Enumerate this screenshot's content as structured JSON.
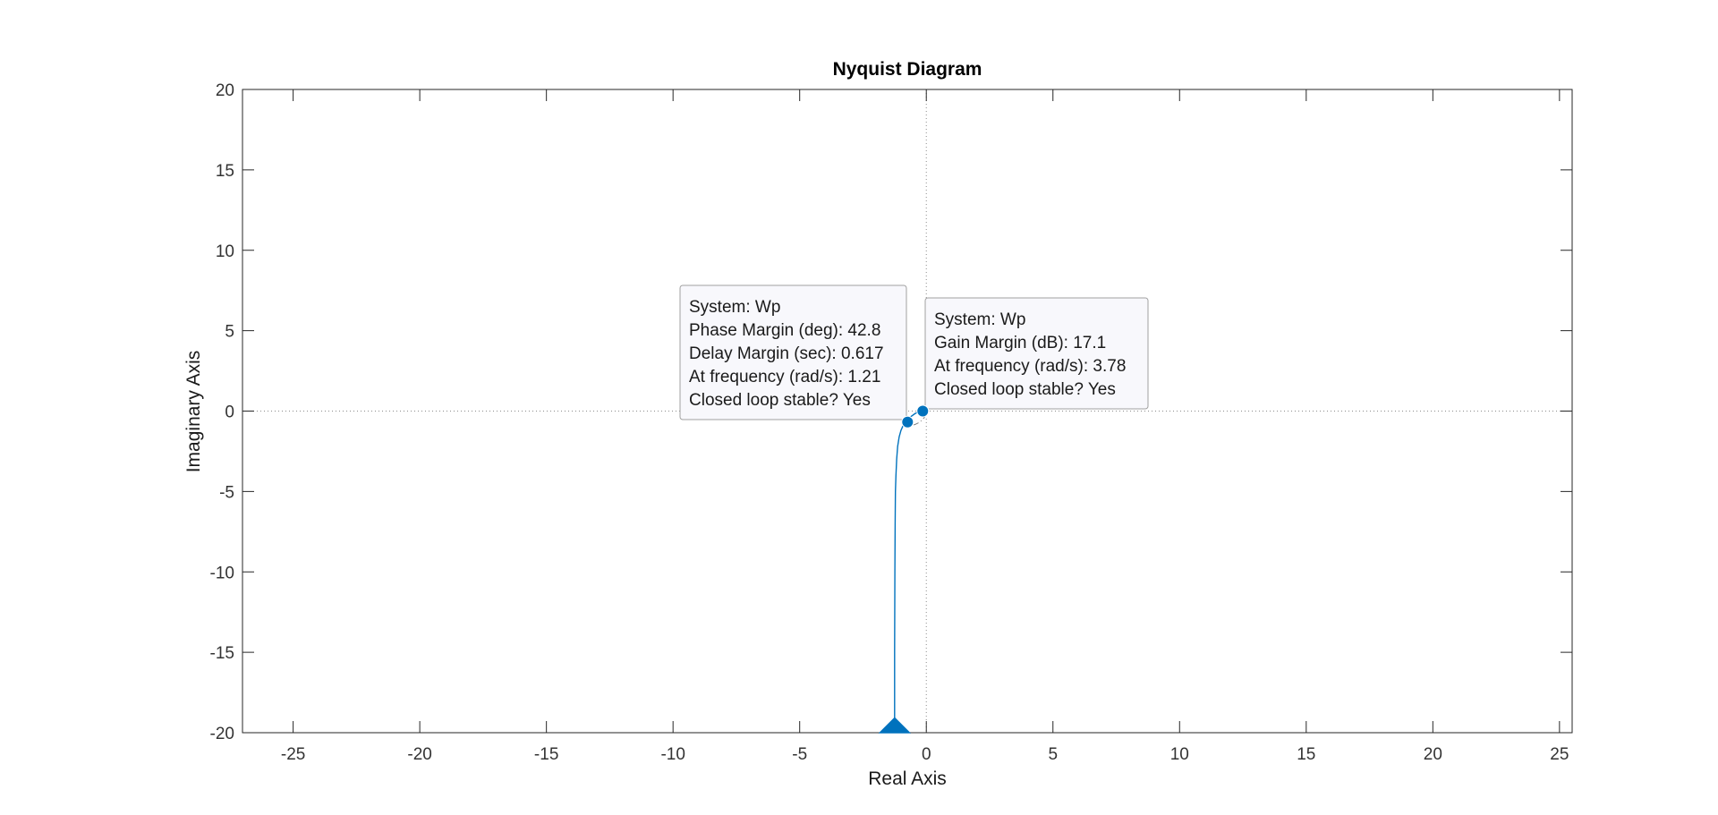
{
  "chart_data": {
    "type": "line",
    "title": "Nyquist Diagram",
    "xlabel": "Real Axis",
    "ylabel": "Imaginary Axis",
    "xlim": [
      -27,
      25.5
    ],
    "ylim": [
      -20,
      20
    ],
    "xticks": [
      -25,
      -20,
      -15,
      -10,
      -5,
      0,
      5,
      10,
      15,
      20,
      25
    ],
    "yticks": [
      -20,
      -15,
      -10,
      -5,
      0,
      5,
      10,
      15,
      20
    ],
    "grid": false,
    "zero_lines": true,
    "line_color": "#0072BD",
    "series": [
      {
        "name": "Wp",
        "x": [
          -1.25,
          -1.25,
          -1.24,
          -1.23,
          -1.22,
          -1.2,
          -1.17,
          -1.13,
          -1.07,
          -1.0,
          -0.93,
          -0.84,
          -0.76,
          -0.66,
          -0.55,
          -0.45,
          -0.35,
          -0.26,
          -0.18,
          -0.13,
          -0.11
        ],
        "y": [
          -20,
          -15,
          -10,
          -7,
          -5,
          -4,
          -3,
          -2.2,
          -1.6,
          -1.2,
          -0.95,
          -0.72,
          -0.55,
          -0.4,
          -0.27,
          -0.16,
          -0.08,
          -0.03,
          -0.005,
          0,
          0
        ]
      }
    ],
    "arrow_marker": {
      "x": -1.25,
      "y": -19.9
    },
    "critical_point": {
      "x": -1,
      "y": 0
    },
    "unit_circle_arc": {
      "start_deg": -60,
      "end_deg": 20
    },
    "markers": [
      {
        "id": "phase-margin",
        "x": -0.74,
        "y": -0.68,
        "lines": [
          "System: Wp",
          "Phase Margin (deg): 42.8",
          "Delay Margin (sec): 0.617",
          "At frequency (rad/s): 1.21",
          "Closed loop stable? Yes"
        ]
      },
      {
        "id": "gain-margin",
        "x": -0.14,
        "y": 0,
        "lines": [
          "System: Wp",
          "Gain Margin (dB): 17.1",
          "At frequency (rad/s): 3.78",
          "Closed loop stable? Yes"
        ]
      }
    ]
  }
}
